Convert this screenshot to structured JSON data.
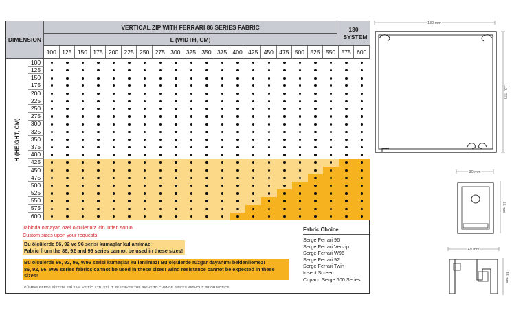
{
  "table": {
    "dimension_label": "DIMENSION",
    "title": "VERTICAL ZIP WITH FERRARI 86 SERIES FABRIC",
    "width_label": "L (WIDTH, CM)",
    "system_label": "130 SYSTEM",
    "height_label": "H (HEIGHT, CM)",
    "widths": [
      "100",
      "125",
      "150",
      "175",
      "200",
      "225",
      "250",
      "275",
      "300",
      "325",
      "350",
      "375",
      "400",
      "425",
      "450",
      "475",
      "500",
      "525",
      "550",
      "575",
      "600"
    ],
    "heights": [
      "100",
      "125",
      "150",
      "175",
      "200",
      "225",
      "250",
      "275",
      "300",
      "325",
      "350",
      "375",
      "400",
      "425",
      "450",
      "475",
      "500",
      "525",
      "550",
      "575",
      "600"
    ],
    "light_rows_start": 13,
    "orange_start_by_row": [
      21,
      21,
      21,
      21,
      21,
      21,
      21,
      21,
      21,
      21,
      21,
      21,
      21,
      19,
      18,
      17,
      16,
      15,
      14,
      13,
      12
    ],
    "colors": {
      "light": "#fbd989",
      "dark": "#f7b21f",
      "header": "#c9ccd2",
      "red_text": "#d1232a"
    }
  },
  "notes": {
    "tr_custom": "Tabloda olmayan özel ölçülleriniz için lütfen sorun.",
    "en_custom": "Custom sizes upon your requests.",
    "light_tr": "Bu ölçülerde 86, 92 ve 96 serisi kumaşlar kullanılmaz!",
    "light_en": "Fabric from the 86, 92 and 96 series cannot be used in these sizes!",
    "dark_tr": "Bu ölçülerde 86, 92, 96, W96 serisi kumaşlar kullanılmaz! Bu ölçülerde rüzgar dayanımı beklenilemez!",
    "dark_en": "86, 92, 96, w96 series fabrics cannot be used in these sizes! Wind resistance cannot be expected in these sizes!",
    "footer": "GÜMPAY PERDE SİSTEMLERİ SAN. VE TİC. LTD. ŞTİ. IT RESERVES THE RIGHT TO CHANGE PRICES WITHOUT PRIOR NOTICE."
  },
  "fabric_choice": {
    "title": "Fabric Choice",
    "items": [
      "Serge Ferrari 96",
      "Serge Ferrari Veozip",
      "Serge Ferrari W96",
      "Serge Ferrari 92",
      "Serge Ferrari Twin",
      "Insect Screen",
      "Copaco Serge 600 Series"
    ]
  },
  "drawings": {
    "box_width": "130 mm",
    "box_height": "130 mm",
    "rail_width": "30 mm",
    "rail_height": "55 mm",
    "bottom_width": "49 mm",
    "bottom_height": "38 mm"
  }
}
